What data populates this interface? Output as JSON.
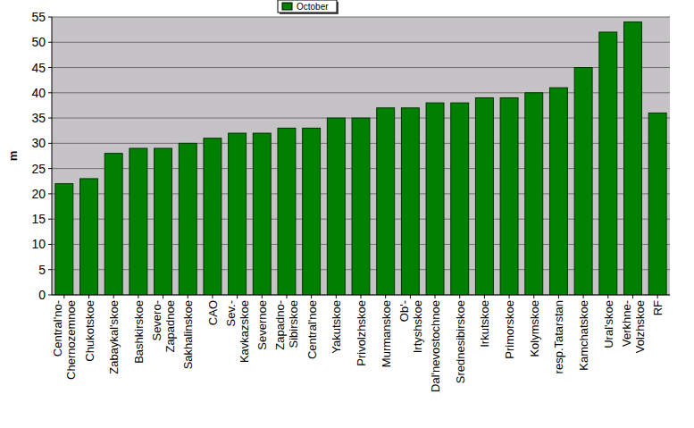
{
  "chart_data": {
    "type": "bar",
    "y_label": "m",
    "categories": [
      "Central'no-\nChernozemnoe",
      "Chukotskoe",
      "Zabaykal'skoe",
      "Bashkirskoe",
      "Severo-\nZapadnoe",
      "Sakhalinskoe",
      "CAO",
      "Sev.-\nKavkazskoe",
      "Severnoe",
      "Zapadno-\nSibirskoe",
      "Central'noe",
      "Yakutskoe",
      "Privolzhskoe",
      "Murmanskoe",
      "Ob'-\nIrtyshskoe",
      "Dal'nevostochnoe",
      "Srednesibirskoe",
      "Irkutskoe",
      "Primorskoe",
      "Kolymskoe",
      "resp.Tatarstan",
      "Kamchatskoe",
      "Ural'skoe",
      "Verkhne-\nVolzhskoe",
      "RF"
    ],
    "series": [
      {
        "name": "October",
        "color": "#008000",
        "values": [
          22,
          23,
          28,
          29,
          29,
          30,
          31,
          32,
          32,
          33,
          33,
          35,
          35,
          37,
          37,
          38,
          38,
          39,
          39,
          40,
          41,
          45,
          52,
          54,
          36
        ]
      }
    ],
    "ylim": [
      0,
      55
    ],
    "yticks": [
      0,
      5,
      10,
      15,
      20,
      25,
      30,
      35,
      40,
      45,
      50,
      55
    ],
    "grid": true,
    "legend": "top"
  }
}
